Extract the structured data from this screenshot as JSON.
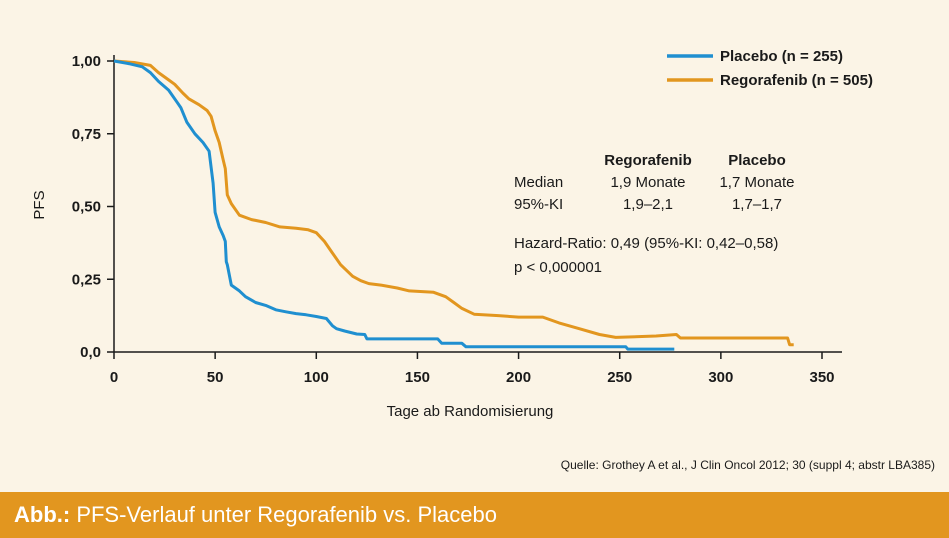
{
  "colors": {
    "placebo": "#1f8fd0",
    "regorafenib": "#e2961f",
    "caption_bar": "#e2961f",
    "background": "#fbf4e6"
  },
  "chart_data": {
    "type": "line",
    "title": "",
    "xlabel": "Tage ab Randomisierung",
    "ylabel": "PFS",
    "xlim": [
      0,
      350
    ],
    "ylim": [
      0,
      1
    ],
    "x_ticks": [
      0,
      50,
      100,
      150,
      200,
      250,
      300,
      350
    ],
    "x_tick_labels": [
      "0",
      "50",
      "100",
      "150",
      "200",
      "250",
      "300",
      "350"
    ],
    "y_ticks": [
      0,
      0.25,
      0.5,
      0.75,
      1.0
    ],
    "y_tick_labels": [
      "0,0",
      "0,25",
      "0,50",
      "0,75",
      "1,00"
    ],
    "grid": false,
    "legend_position": "top-right",
    "series": [
      {
        "name": "Placebo (n = 255)",
        "color": "#1f8fd0",
        "points": [
          [
            0,
            1.0
          ],
          [
            8,
            0.99
          ],
          [
            14,
            0.98
          ],
          [
            18,
            0.96
          ],
          [
            22,
            0.93
          ],
          [
            27,
            0.9
          ],
          [
            31,
            0.86
          ],
          [
            33,
            0.84
          ],
          [
            36,
            0.79
          ],
          [
            40,
            0.75
          ],
          [
            44,
            0.72
          ],
          [
            47,
            0.69
          ],
          [
            49,
            0.58
          ],
          [
            50,
            0.48
          ],
          [
            52,
            0.43
          ],
          [
            54,
            0.4
          ],
          [
            55,
            0.38
          ],
          [
            55.5,
            0.31
          ],
          [
            56,
            0.3
          ],
          [
            58,
            0.23
          ],
          [
            62,
            0.21
          ],
          [
            65,
            0.19
          ],
          [
            70,
            0.17
          ],
          [
            75,
            0.16
          ],
          [
            80,
            0.145
          ],
          [
            85,
            0.138
          ],
          [
            90,
            0.132
          ],
          [
            95,
            0.128
          ],
          [
            100,
            0.122
          ],
          [
            105,
            0.115
          ],
          [
            108,
            0.09
          ],
          [
            110,
            0.08
          ],
          [
            114,
            0.072
          ],
          [
            120,
            0.062
          ],
          [
            124,
            0.06
          ],
          [
            125,
            0.045
          ],
          [
            135,
            0.045
          ],
          [
            145,
            0.045
          ],
          [
            160,
            0.045
          ],
          [
            162,
            0.03
          ],
          [
            172,
            0.03
          ],
          [
            174,
            0.018
          ],
          [
            200,
            0.018
          ],
          [
            253,
            0.018
          ],
          [
            254,
            0.01
          ],
          [
            277,
            0.01
          ]
        ]
      },
      {
        "name": "Regorafenib (n = 505)",
        "color": "#e2961f",
        "points": [
          [
            0,
            1.0
          ],
          [
            10,
            0.995
          ],
          [
            18,
            0.985
          ],
          [
            22,
            0.96
          ],
          [
            27,
            0.935
          ],
          [
            30,
            0.92
          ],
          [
            34,
            0.89
          ],
          [
            37,
            0.87
          ],
          [
            42,
            0.85
          ],
          [
            46,
            0.83
          ],
          [
            48,
            0.81
          ],
          [
            50,
            0.76
          ],
          [
            52,
            0.72
          ],
          [
            54,
            0.66
          ],
          [
            55,
            0.63
          ],
          [
            56,
            0.54
          ],
          [
            58,
            0.51
          ],
          [
            62,
            0.47
          ],
          [
            68,
            0.455
          ],
          [
            75,
            0.445
          ],
          [
            82,
            0.43
          ],
          [
            90,
            0.425
          ],
          [
            96,
            0.42
          ],
          [
            100,
            0.41
          ],
          [
            104,
            0.38
          ],
          [
            108,
            0.34
          ],
          [
            112,
            0.3
          ],
          [
            118,
            0.26
          ],
          [
            122,
            0.245
          ],
          [
            126,
            0.235
          ],
          [
            132,
            0.23
          ],
          [
            140,
            0.22
          ],
          [
            146,
            0.21
          ],
          [
            158,
            0.205
          ],
          [
            160,
            0.2
          ],
          [
            164,
            0.19
          ],
          [
            168,
            0.17
          ],
          [
            172,
            0.15
          ],
          [
            178,
            0.13
          ],
          [
            190,
            0.125
          ],
          [
            200,
            0.12
          ],
          [
            212,
            0.12
          ],
          [
            220,
            0.1
          ],
          [
            230,
            0.08
          ],
          [
            240,
            0.06
          ],
          [
            248,
            0.05
          ],
          [
            268,
            0.055
          ],
          [
            278,
            0.06
          ],
          [
            280,
            0.048
          ],
          [
            300,
            0.048
          ],
          [
            333,
            0.048
          ],
          [
            334,
            0.025
          ],
          [
            336,
            0.025
          ]
        ]
      }
    ],
    "annotations": {
      "stats_header": [
        "Regorafenib",
        "Placebo"
      ],
      "stats_rows": [
        {
          "label": "Median",
          "regorafenib": "1,9 Monate",
          "placebo": "1,7 Monate"
        },
        {
          "label": "95%-KI",
          "regorafenib": "1,9–2,1",
          "placebo": "1,7–1,7"
        }
      ],
      "hazard_ratio": "Hazard-Ratio: 0,49 (95%-KI: 0,42–0,58)",
      "p_value": "p < 0,000001"
    },
    "source": "Quelle: Grothey A et al., J Clin Oncol 2012; 30 (suppl 4; abstr LBA385)"
  },
  "caption": {
    "prefix": "Abb.:",
    "text": " PFS-Verlauf unter Regorafenib vs. Placebo"
  }
}
